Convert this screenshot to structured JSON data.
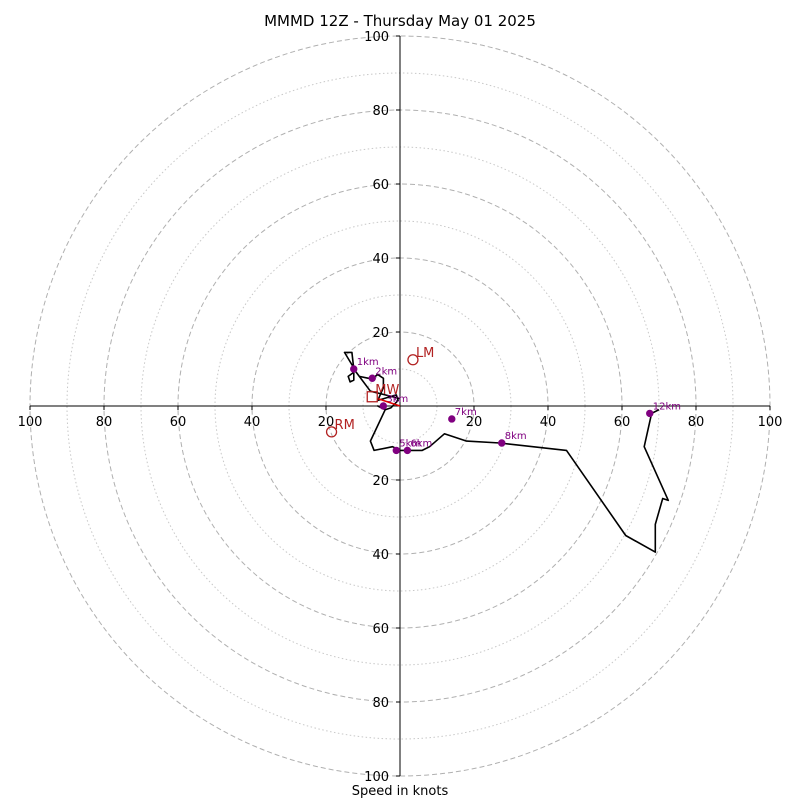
{
  "chart_data": {
    "type": "hodograph",
    "title": "MMMD 12Z - Thursday May 01 2025",
    "xlabel": "Speed in knots",
    "units": "knots",
    "range": [
      -100,
      100
    ],
    "major_rings": [
      20,
      40,
      60,
      80,
      100
    ],
    "minor_rings": [
      10,
      30,
      50,
      70,
      90
    ],
    "x_ticks": [
      {
        "value": -100,
        "label": "100"
      },
      {
        "value": -80,
        "label": "80"
      },
      {
        "value": -60,
        "label": "60"
      },
      {
        "value": -40,
        "label": "40"
      },
      {
        "value": -20,
        "label": "20"
      },
      {
        "value": 20,
        "label": "20"
      },
      {
        "value": 40,
        "label": "40"
      },
      {
        "value": 60,
        "label": "60"
      },
      {
        "value": 80,
        "label": "80"
      },
      {
        "value": 100,
        "label": "100"
      }
    ],
    "y_ticks": [
      {
        "value": 100,
        "label": "100"
      },
      {
        "value": 80,
        "label": "80"
      },
      {
        "value": 60,
        "label": "60"
      },
      {
        "value": 40,
        "label": "40"
      },
      {
        "value": 20,
        "label": "20"
      },
      {
        "value": -20,
        "label": "20"
      },
      {
        "value": -40,
        "label": "40"
      },
      {
        "value": -60,
        "label": "60"
      },
      {
        "value": -80,
        "label": "80"
      },
      {
        "value": -100,
        "label": "100"
      }
    ],
    "trace": [
      [
        0,
        2
      ],
      [
        -8,
        4
      ],
      [
        -12.5,
        10
      ],
      [
        -12.5,
        7
      ],
      [
        -13.5,
        6.5
      ],
      [
        -14,
        8
      ],
      [
        -12,
        9.5
      ],
      [
        -15,
        14.5
      ],
      [
        -13,
        14.5
      ],
      [
        -12.5,
        10
      ],
      [
        -11,
        8
      ],
      [
        -8.5,
        7.5
      ],
      [
        -7.5,
        7.5
      ],
      [
        -6,
        8.5
      ],
      [
        -4.5,
        7.5
      ],
      [
        -4.5,
        5
      ],
      [
        -6,
        1.5
      ],
      [
        -1,
        3
      ],
      [
        -0.5,
        1.5
      ],
      [
        -2.5,
        -0.5
      ],
      [
        -4,
        -1
      ],
      [
        -6,
        0
      ],
      [
        -4,
        -1
      ],
      [
        -8,
        -9.5
      ],
      [
        -7,
        -12
      ],
      [
        -2,
        -11
      ],
      [
        0,
        -12
      ],
      [
        3,
        -12
      ],
      [
        6,
        -12
      ],
      [
        8,
        -11
      ],
      [
        12,
        -7.5
      ],
      [
        18,
        -9.5
      ],
      [
        27,
        -10
      ],
      [
        45,
        -12
      ],
      [
        61,
        -35
      ],
      [
        69,
        -39.5
      ],
      [
        69,
        -32
      ],
      [
        71,
        -25
      ],
      [
        72.5,
        -25.5
      ],
      [
        66,
        -11
      ],
      [
        68,
        -2
      ],
      [
        70,
        -1
      ]
    ],
    "height_markers": [
      {
        "label": "1km",
        "u": -12.5,
        "v": 10
      },
      {
        "label": "2km",
        "u": -7.5,
        "v": 7.5
      },
      {
        "label": "3km",
        "u": -4.5,
        "v": 0
      },
      {
        "label": "5km",
        "u": -1,
        "v": -12
      },
      {
        "label": "6km",
        "u": 2,
        "v": -12
      },
      {
        "label": "7km",
        "u": 14,
        "v": -3.5
      },
      {
        "label": "8km",
        "u": 27.5,
        "v": -10
      },
      {
        "label": "12km",
        "u": 67.5,
        "v": -2
      }
    ],
    "storm_motion": [
      {
        "label": "LM",
        "u": 3.5,
        "v": 12.5,
        "marker": "circle"
      },
      {
        "label": "MW",
        "u": -7.5,
        "v": 2.5,
        "marker": "square"
      },
      {
        "label": "RM",
        "u": -18.5,
        "v": -7,
        "marker": "circle"
      }
    ],
    "grid": true
  },
  "colors": {
    "trace": "#000000",
    "marker": "#800080",
    "storm_motion": "#b22222",
    "shear_arrow": "#dd0000",
    "grid_major": "#b0b0b0",
    "grid_minor": "#c8c8c8",
    "axes": "#000000"
  }
}
